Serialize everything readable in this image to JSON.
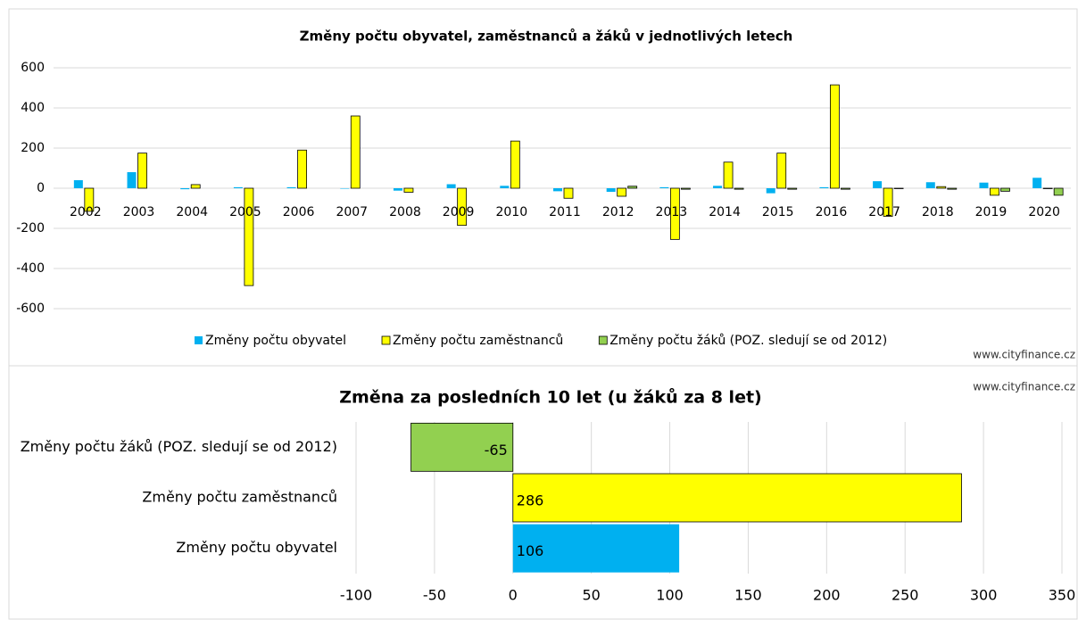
{
  "chart_data": [
    {
      "type": "bar",
      "title": "Změny počtu obyvatel, zaměstnanců a žáků v jednotlivých letech",
      "categories": [
        "2002",
        "2003",
        "2004",
        "2005",
        "2006",
        "2007",
        "2008",
        "2009",
        "2010",
        "2011",
        "2012",
        "2013",
        "2014",
        "2015",
        "2016",
        "2017",
        "2018",
        "2019",
        "2020"
      ],
      "series": [
        {
          "name": "Změny počtu obyvatel",
          "color": "#00b0f0",
          "values": [
            40,
            80,
            -5,
            5,
            5,
            0,
            -12,
            20,
            12,
            -15,
            -18,
            5,
            12,
            -25,
            5,
            35,
            30,
            28,
            52
          ]
        },
        {
          "name": "Změny počtu zaměstnanců",
          "color": "#ffff00",
          "values": [
            -115,
            175,
            18,
            -485,
            190,
            360,
            -20,
            -185,
            235,
            -50,
            -40,
            -255,
            130,
            175,
            515,
            -140,
            8,
            -35,
            0
          ]
        },
        {
          "name": "Změny počtu žáků (POZ. sledují se od 2012)",
          "color": "#92d050",
          "values": [
            null,
            null,
            null,
            null,
            null,
            null,
            null,
            null,
            null,
            null,
            10,
            -5,
            -5,
            -5,
            -5,
            0,
            -5,
            -15,
            -35
          ]
        }
      ],
      "ylim": [
        -600,
        600
      ],
      "yticks": [
        -600,
        -400,
        -200,
        0,
        200,
        400,
        600
      ],
      "grid": true,
      "legend": "bottom",
      "source": "www.cityfinance.cz"
    },
    {
      "type": "hbar",
      "title": "Změna za posledních 10 let (u žáků za 8 let)",
      "categories": [
        "Změny počtu žáků (POZ. sledují se od 2012)",
        "Změny počtu zaměstnanců",
        "Změny počtu obyvatel"
      ],
      "values": [
        -65,
        286,
        106
      ],
      "colors": [
        "#92d050",
        "#ffff00",
        "#00b0f0"
      ],
      "xlim": [
        -100,
        350
      ],
      "xticks": [
        -100,
        -50,
        0,
        50,
        100,
        150,
        200,
        250,
        300,
        350
      ],
      "grid": true,
      "source": "www.cityfinance.cz"
    }
  ]
}
